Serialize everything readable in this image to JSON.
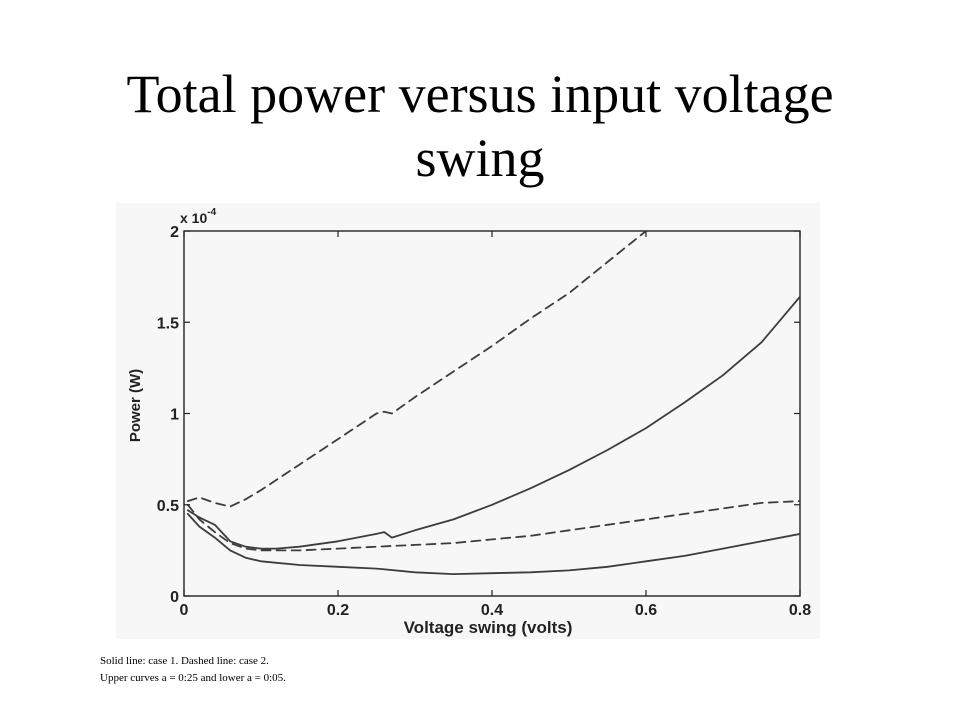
{
  "title": {
    "line1": "Total power versus input voltage",
    "line2": "swing"
  },
  "caption": {
    "line1": "Solid line: case 1. Dashed line: case 2.",
    "line2": "Upper curves  a = 0:25 and lower  a = 0:05."
  },
  "colors": {
    "curve": "#3c3c3c",
    "axes": "#222222",
    "background": "#f7f7f7"
  },
  "chart_data": {
    "type": "line",
    "title": "",
    "xlabel": "Voltage swing (volts)",
    "ylabel": "Power (W)",
    "y_multiplier_label": "x 10",
    "y_multiplier_exponent": "-4",
    "xlim": [
      0,
      0.8
    ],
    "ylim": [
      0,
      2
    ],
    "x_ticks": [
      0,
      0.2,
      0.4,
      0.6,
      0.8
    ],
    "x_tick_labels": [
      "0",
      "0.2",
      "0.4",
      "0.6",
      "0.8"
    ],
    "y_ticks": [
      0,
      0.5,
      1,
      1.5,
      2
    ],
    "y_tick_labels": [
      "0",
      "0.5",
      "1",
      "1.5",
      "2"
    ],
    "grid": false,
    "legend": "none",
    "series": [
      {
        "style": "solid",
        "x": [
          0.005,
          0.02,
          0.04,
          0.06,
          0.08,
          0.1,
          0.12,
          0.15,
          0.2,
          0.25,
          0.26,
          0.27,
          0.3,
          0.35,
          0.4,
          0.45,
          0.5,
          0.55,
          0.6,
          0.65,
          0.7,
          0.75,
          0.8
        ],
        "y": [
          0.47,
          0.43,
          0.39,
          0.3,
          0.27,
          0.26,
          0.26,
          0.27,
          0.3,
          0.34,
          0.35,
          0.32,
          0.36,
          0.42,
          0.5,
          0.59,
          0.69,
          0.8,
          0.92,
          1.06,
          1.21,
          1.39,
          1.64
        ]
      },
      {
        "style": "solid",
        "x": [
          0.005,
          0.02,
          0.04,
          0.06,
          0.08,
          0.1,
          0.15,
          0.2,
          0.25,
          0.3,
          0.35,
          0.4,
          0.45,
          0.5,
          0.55,
          0.6,
          0.65,
          0.7,
          0.75,
          0.8
        ],
        "y": [
          0.45,
          0.38,
          0.32,
          0.25,
          0.21,
          0.19,
          0.17,
          0.16,
          0.15,
          0.13,
          0.12,
          0.125,
          0.13,
          0.14,
          0.16,
          0.19,
          0.22,
          0.26,
          0.3,
          0.34
        ]
      },
      {
        "style": "dashed",
        "x": [
          0.005,
          0.02,
          0.04,
          0.06,
          0.08,
          0.1,
          0.15,
          0.2,
          0.25,
          0.26,
          0.27,
          0.3,
          0.35,
          0.4,
          0.45,
          0.5,
          0.55,
          0.6
        ],
        "y": [
          0.52,
          0.54,
          0.51,
          0.49,
          0.53,
          0.58,
          0.72,
          0.86,
          1.0,
          1.01,
          1.0,
          1.09,
          1.23,
          1.37,
          1.52,
          1.66,
          1.83,
          2.0
        ]
      },
      {
        "style": "dashed",
        "x": [
          0.005,
          0.02,
          0.04,
          0.06,
          0.08,
          0.1,
          0.15,
          0.2,
          0.25,
          0.3,
          0.35,
          0.4,
          0.45,
          0.5,
          0.55,
          0.6,
          0.65,
          0.7,
          0.75,
          0.8
        ],
        "y": [
          0.5,
          0.42,
          0.35,
          0.29,
          0.26,
          0.25,
          0.25,
          0.26,
          0.27,
          0.28,
          0.29,
          0.31,
          0.33,
          0.36,
          0.39,
          0.42,
          0.45,
          0.48,
          0.51,
          0.52
        ]
      }
    ]
  }
}
